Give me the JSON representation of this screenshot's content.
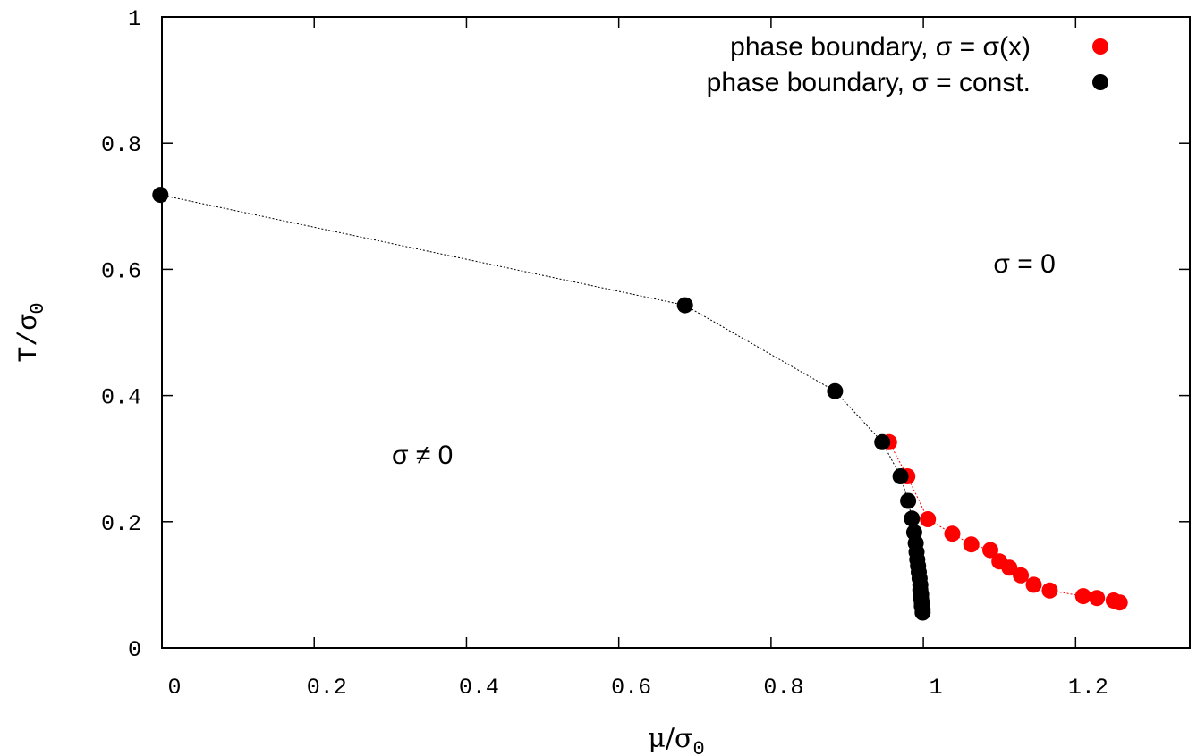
{
  "chart_data": {
    "type": "scatter",
    "title": "",
    "xlabel": {
      "main": "μ/σ",
      "sub": "0"
    },
    "ylabel": {
      "main": "T/σ",
      "sub": "0"
    },
    "xlim": [
      0,
      1.35
    ],
    "ylim": [
      0,
      1
    ],
    "grid": false,
    "legend_position": "top-right",
    "x_ticks": [
      {
        "value": 0,
        "label": "0"
      },
      {
        "value": 0.2,
        "label": "0.2"
      },
      {
        "value": 0.4,
        "label": "0.4"
      },
      {
        "value": 0.6,
        "label": "0.6"
      },
      {
        "value": 0.8,
        "label": "0.8"
      },
      {
        "value": 1,
        "label": "1"
      },
      {
        "value": 1.2,
        "label": "1.2"
      }
    ],
    "y_ticks": [
      {
        "value": 0,
        "label": "0"
      },
      {
        "value": 0.2,
        "label": "0.2"
      },
      {
        "value": 0.4,
        "label": "0.4"
      },
      {
        "value": 0.6,
        "label": "0.6"
      },
      {
        "value": 0.8,
        "label": "0.8"
      },
      {
        "value": 1,
        "label": "1"
      }
    ],
    "series": [
      {
        "name": "phase boundary, σ = σ(x)",
        "color": "#ff0000",
        "line_style": "dotted",
        "points": [
          [
            0.955,
            0.326
          ],
          [
            0.979,
            0.272
          ],
          [
            1.006,
            0.204
          ],
          [
            1.038,
            0.181
          ],
          [
            1.063,
            0.164
          ],
          [
            1.088,
            0.155
          ],
          [
            1.1,
            0.137
          ],
          [
            1.113,
            0.127
          ],
          [
            1.128,
            0.115
          ],
          [
            1.145,
            0.1
          ],
          [
            1.166,
            0.091
          ],
          [
            1.21,
            0.082
          ],
          [
            1.228,
            0.079
          ],
          [
            1.25,
            0.075
          ],
          [
            1.258,
            0.072
          ]
        ]
      },
      {
        "name": "phase boundary, σ = const.",
        "color": "#000000",
        "line_style": "dotted",
        "points": [
          [
            -0.002,
            0.718
          ],
          [
            0.687,
            0.543
          ],
          [
            0.884,
            0.407
          ],
          [
            0.946,
            0.326
          ],
          [
            0.97,
            0.272
          ],
          [
            0.98,
            0.233
          ],
          [
            0.985,
            0.205
          ],
          [
            0.988,
            0.183
          ],
          [
            0.99,
            0.166
          ],
          [
            0.991,
            0.152
          ],
          [
            0.992,
            0.14
          ],
          [
            0.993,
            0.13
          ],
          [
            0.994,
            0.12
          ],
          [
            0.995,
            0.11
          ],
          [
            0.996,
            0.1
          ],
          [
            0.996,
            0.092
          ],
          [
            0.997,
            0.085
          ],
          [
            0.997,
            0.078
          ],
          [
            0.998,
            0.072
          ],
          [
            0.998,
            0.066
          ],
          [
            0.999,
            0.061
          ],
          [
            0.999,
            0.056
          ]
        ]
      }
    ],
    "annotations": [
      {
        "id": "region-label-disordered",
        "text": "σ = 0",
        "x": 1.092,
        "y": 0.595
      },
      {
        "id": "region-label-ordered",
        "text": "σ ≠ 0",
        "x": 0.302,
        "y": 0.292
      }
    ]
  }
}
